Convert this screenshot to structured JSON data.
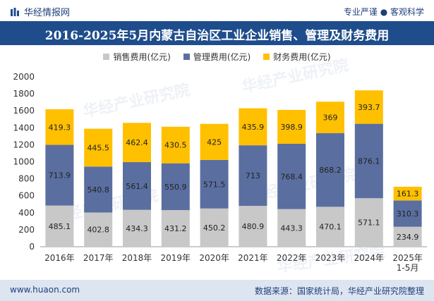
{
  "header": {
    "brand": "华经情报网",
    "tagline": "专业严谨 ● 客观科学"
  },
  "title": "2016-2025年5月内蒙古自治区工业企业销售、管理及财务费用",
  "legend": [
    {
      "label": "销售费用(亿元)",
      "color": "#c8c8c8"
    },
    {
      "label": "管理费用(亿元)",
      "color": "#5a6ea0"
    },
    {
      "label": "财务费用(亿元)",
      "color": "#ffc000"
    }
  ],
  "footer": {
    "site": "www.huaon.com",
    "source": "数据来源：国家统计局，华经产业研究院整理"
  },
  "watermark": "华经产业研究院",
  "chart_data": {
    "type": "bar",
    "stacked": true,
    "title": "2016-2025年5月内蒙古自治区工业企业销售、管理及财务费用",
    "categories": [
      "2016年",
      "2017年",
      "2018年",
      "2019年",
      "2020年",
      "2021年",
      "2022年",
      "2023年",
      "2024年",
      "2025年\n1-5月"
    ],
    "series": [
      {
        "name": "销售费用(亿元)",
        "color": "#c8c8c8",
        "values": [
          485.1,
          402.8,
          434.3,
          431.2,
          450.2,
          480.9,
          443.3,
          470.1,
          571.1,
          234.9
        ]
      },
      {
        "name": "管理费用(亿元)",
        "color": "#5a6ea0",
        "values": [
          713.9,
          540.8,
          561.4,
          550.9,
          571.5,
          713,
          768.4,
          868.2,
          876.1,
          310.3
        ]
      },
      {
        "name": "财务费用(亿元)",
        "color": "#ffc000",
        "values": [
          419.3,
          445.5,
          462.4,
          430.5,
          425,
          435.9,
          398.9,
          369,
          393.7,
          161.3
        ]
      }
    ],
    "ylim": [
      0,
      2000
    ],
    "yticks": [
      0,
      200,
      400,
      600,
      800,
      1000,
      1200,
      1400,
      1600,
      1800,
      2000
    ],
    "xlabel": "",
    "ylabel": ""
  }
}
